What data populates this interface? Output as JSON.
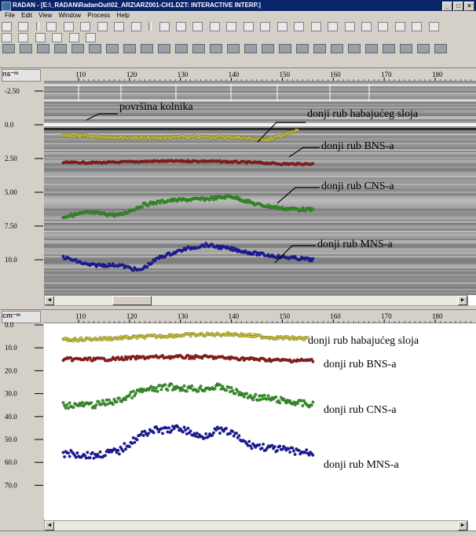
{
  "window": {
    "title": "RADAN - [E:\\_RADAN\\RadanOut\\02_ARZ\\ARZ001-CH1.DZT: INTERACTIVE INTERP.]",
    "min": "_",
    "max": "□",
    "close": "×"
  },
  "menu": [
    "File",
    "Edit",
    "View",
    "Window",
    "Process",
    "Help"
  ],
  "top_panel": {
    "unit_label": "ns⁻ᵐ",
    "x_ticks": [
      "110",
      "120",
      "130",
      "140",
      "150",
      "160",
      "170",
      "180"
    ],
    "y_ticks": [
      "-2.50",
      "0.0",
      "2.50",
      "5.00",
      "7.50",
      "10.0"
    ],
    "annotations": {
      "surface": "površina kolnika",
      "wear": "donji rub habajućeg sloja",
      "bns": "donji rub BNS-a",
      "cns": "donji rub CNS-a",
      "mns": "donji rub MNS-a"
    },
    "scroll_left": "◄",
    "scroll_right": "►"
  },
  "bottom_panel": {
    "unit_label": "cm⁻ᵐ",
    "x_ticks": [
      "110",
      "120",
      "130",
      "140",
      "150",
      "160",
      "170",
      "180"
    ],
    "y_ticks": [
      "0.0",
      "10.0",
      "20.0",
      "30.0",
      "40.0",
      "50.0",
      "60.0",
      "70.0"
    ],
    "annotations": {
      "wear": "donji rub habajućeg sloja",
      "bns": "donji rub BNS-a",
      "cns": "donji rub CNS-a",
      "mns": "donji rub MNS-a"
    },
    "scroll_left": "◄",
    "scroll_right": "►"
  },
  "colors": {
    "wear": "#d8d030",
    "bns": "#a01818",
    "cns": "#30a020",
    "mns": "#1818b0"
  },
  "picks": {
    "top": {
      "wear": [
        [
          107,
          0.8
        ],
        [
          115,
          0.9
        ],
        [
          125,
          1.0
        ],
        [
          130,
          0.9
        ],
        [
          140,
          0.9
        ],
        [
          147,
          1.1
        ],
        [
          150,
          0.8
        ],
        [
          153,
          0.4
        ]
      ],
      "bns": [
        [
          107,
          2.8
        ],
        [
          115,
          2.8
        ],
        [
          125,
          2.7
        ],
        [
          135,
          2.7
        ],
        [
          145,
          2.8
        ],
        [
          150,
          2.9
        ],
        [
          156,
          2.9
        ]
      ],
      "cns": [
        [
          107,
          6.8
        ],
        [
          112,
          6.5
        ],
        [
          118,
          6.7
        ],
        [
          123,
          5.9
        ],
        [
          128,
          5.6
        ],
        [
          135,
          5.5
        ],
        [
          140,
          5.3
        ],
        [
          145,
          5.9
        ],
        [
          150,
          6.2
        ],
        [
          156,
          6.3
        ]
      ],
      "mns": [
        [
          107,
          9.8
        ],
        [
          112,
          10.4
        ],
        [
          118,
          10.4
        ],
        [
          122,
          10.8
        ],
        [
          126,
          9.8
        ],
        [
          131,
          9.2
        ],
        [
          135,
          8.9
        ],
        [
          140,
          9.2
        ],
        [
          144,
          9.5
        ],
        [
          150,
          9.8
        ],
        [
          156,
          10.0
        ]
      ]
    },
    "bottom": {
      "wear": [
        [
          107,
          6.5
        ],
        [
          115,
          6
        ],
        [
          120,
          5.5
        ],
        [
          130,
          4.5
        ],
        [
          140,
          4
        ],
        [
          148,
          5.5
        ],
        [
          155,
          6
        ]
      ],
      "bns": [
        [
          107,
          15
        ],
        [
          115,
          15
        ],
        [
          125,
          14
        ],
        [
          135,
          14
        ],
        [
          145,
          15
        ],
        [
          150,
          15.5
        ],
        [
          156,
          15.5
        ]
      ],
      "cns": [
        [
          107,
          35
        ],
        [
          113,
          35
        ],
        [
          118,
          33
        ],
        [
          122,
          29
        ],
        [
          128,
          27
        ],
        [
          133,
          28
        ],
        [
          138,
          27
        ],
        [
          143,
          31
        ],
        [
          150,
          33
        ],
        [
          156,
          35
        ]
      ],
      "mns": [
        [
          107,
          56
        ],
        [
          113,
          57
        ],
        [
          118,
          55
        ],
        [
          121,
          50
        ],
        [
          124,
          46
        ],
        [
          127,
          46
        ],
        [
          130,
          45
        ],
        [
          134,
          49
        ],
        [
          137,
          46
        ],
        [
          140,
          47
        ],
        [
          143,
          52
        ],
        [
          148,
          54
        ],
        [
          156,
          56
        ]
      ]
    }
  }
}
